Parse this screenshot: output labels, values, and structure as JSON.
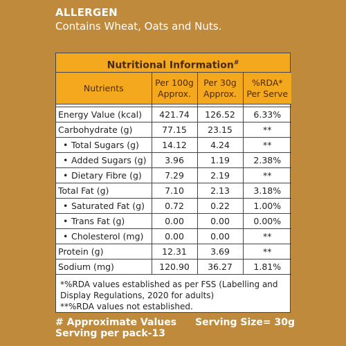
{
  "allergen": {
    "title": "ALLERGEN",
    "text": "Contains Wheat, Oats and Nuts."
  },
  "panel": {
    "title": "Nutritional Information",
    "title_mark": "#",
    "headers": {
      "nutrients": "Nutrients",
      "per100_a": "Per 100g",
      "per100_b": "Approx.",
      "per30_a": "Per 30g",
      "per30_b": "Approx.",
      "rda_a": "%RDA*",
      "rda_b": "Per Serve"
    },
    "rows": [
      {
        "name": "Energy Value (kcal)",
        "per100": "421.74",
        "per30": "126.52",
        "rda": "6.33%"
      },
      {
        "name": "Carbohydrate (g)",
        "per100": "77.15",
        "per30": "23.15",
        "rda": "**"
      },
      {
        "name": "Total Sugars (g)",
        "per100": "14.12",
        "per30": "4.24",
        "rda": "**"
      },
      {
        "name": "Added Sugars (g)",
        "per100": "3.96",
        "per30": "1.19",
        "rda": "2.38%"
      },
      {
        "name": "Dietary Fibre (g)",
        "per100": "7.29",
        "per30": "2.19",
        "rda": "**"
      },
      {
        "name": "Total Fat (g)",
        "per100": "7.10",
        "per30": "2.13",
        "rda": "3.18%"
      },
      {
        "name": "Saturated Fat (g)",
        "per100": "0.72",
        "per30": "0.22",
        "rda": "1.00%"
      },
      {
        "name": "Trans Fat (g)",
        "per100": "0.00",
        "per30": "0.00",
        "rda": "0.00%"
      },
      {
        "name": "Cholesterol (mg)",
        "per100": "0.00",
        "per30": "0.00",
        "rda": "**"
      },
      {
        "name": "Protein (g)",
        "per100": "12.31",
        "per30": "3.69",
        "rda": "**"
      },
      {
        "name": "Sodium (mg)",
        "per100": "120.90",
        "per30": "36.27",
        "rda": "1.81%"
      }
    ],
    "footnote_1": "*%RDA values established as per FSS (Labelling and Display Regulations, 2020 for adults)",
    "footnote_2": "**%RDA values not established."
  },
  "footer": {
    "approx": "# Approximate Values",
    "serving_size": "Serving Size= 30g",
    "servings": "Serving per pack-13"
  },
  "colors": {
    "background": "#c08a3c",
    "header_orange": "#f4a81d"
  }
}
